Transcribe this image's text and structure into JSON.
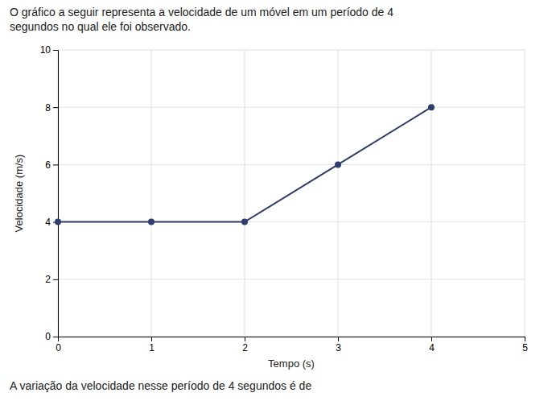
{
  "chart_data": {
    "type": "line",
    "title": "O gráfico a seguir representa a velocidade de um móvel em um período de 4\nsegundos no qual ele foi observado.",
    "footer": "A variação da velocidade nesse período de 4 segundos é de",
    "x": [
      0,
      1,
      2,
      3,
      4
    ],
    "values": [
      4,
      4,
      4,
      6,
      8
    ],
    "xlabel": "Tempo (s)",
    "ylabel": "Velocidade (m/s)",
    "xlim": [
      0,
      5
    ],
    "ylim": [
      0,
      10
    ],
    "xticks": [
      0,
      1,
      2,
      3,
      4,
      5
    ],
    "yticks": [
      0,
      2,
      4,
      6,
      8,
      10
    ],
    "color": "#2d3d6e",
    "marker": "circle",
    "grid": true
  }
}
